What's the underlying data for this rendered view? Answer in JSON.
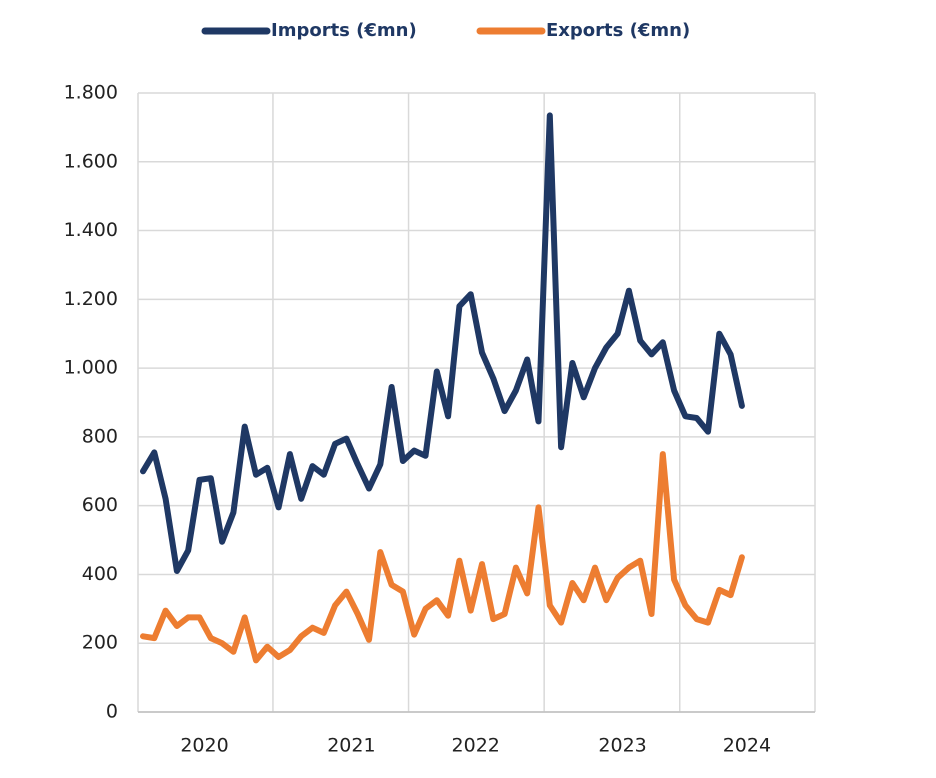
{
  "chart_data": {
    "type": "line",
    "categories": [
      null,
      null,
      null,
      null,
      null,
      "2020",
      null,
      null,
      null,
      null,
      null,
      null,
      null,
      null,
      null,
      null,
      null,
      null,
      "2021",
      null,
      null,
      null,
      null,
      null,
      null,
      null,
      null,
      null,
      null,
      "2022",
      null,
      null,
      null,
      null,
      null,
      null,
      null,
      null,
      null,
      null,
      null,
      null,
      "2023",
      null,
      null,
      null,
      null,
      null,
      null,
      null,
      null,
      null,
      null,
      "2024"
    ],
    "series": [
      {
        "name": "Imports (€mn)",
        "color": "#1f3864",
        "values": [
          700,
          755,
          620,
          410,
          470,
          675,
          680,
          495,
          580,
          830,
          690,
          710,
          595,
          750,
          620,
          715,
          690,
          780,
          795,
          720,
          650,
          720,
          945,
          730,
          760,
          745,
          990,
          860,
          1180,
          1215,
          1045,
          970,
          875,
          935,
          1025,
          845,
          1735,
          770,
          1015,
          915,
          1000,
          1060,
          1100,
          1225,
          1080,
          1040,
          1075,
          935,
          860,
          855,
          815,
          1100,
          1040,
          890
        ]
      },
      {
        "name": "Exports (€mn)",
        "color": "#ed7d31",
        "values": [
          220,
          215,
          295,
          250,
          275,
          275,
          215,
          200,
          175,
          275,
          150,
          190,
          160,
          180,
          220,
          245,
          230,
          310,
          350,
          285,
          210,
          465,
          370,
          350,
          225,
          300,
          325,
          280,
          440,
          295,
          430,
          270,
          285,
          420,
          345,
          595,
          310,
          260,
          375,
          325,
          420,
          325,
          390,
          420,
          440,
          285,
          750,
          385,
          310,
          270,
          260,
          355,
          340,
          450
        ]
      }
    ],
    "ylim": [
      0,
      1800
    ],
    "yticks": [
      0,
      200,
      400,
      600,
      800,
      {
        "value": 1000,
        "label": "1.000"
      },
      {
        "value": 1200,
        "label": "1.200"
      },
      {
        "value": 1400,
        "label": "1.400"
      },
      {
        "value": 1600,
        "label": "1.600"
      },
      {
        "value": 1800,
        "label": "1.800"
      }
    ],
    "grid": true,
    "legend": "top"
  }
}
